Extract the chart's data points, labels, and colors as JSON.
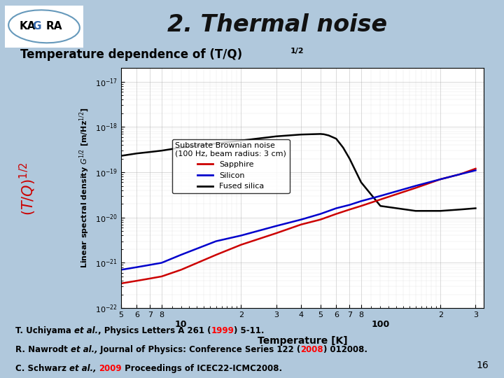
{
  "title": "2. Thermal noise",
  "slide_bg": "#b0c8dc",
  "title_color": "#1a1a1a",
  "left_label_color": "#cc0000",
  "ylabel": "Linear spectral density G$^{1/2}$ [m/Hz$^{1/2}$]",
  "xlabel": "Temperature [K]",
  "plot_bg": "#ffffff",
  "series": {
    "sapphire": {
      "color": "#cc0000",
      "label": "Sapphire",
      "x": [
        5,
        6,
        7,
        8,
        10,
        15,
        20,
        30,
        40,
        50,
        60,
        70,
        80,
        100,
        150,
        200,
        250,
        300
      ],
      "y": [
        3.5e-22,
        4e-22,
        4.5e-22,
        5e-22,
        7e-22,
        1.5e-21,
        2.5e-21,
        4.5e-21,
        7e-21,
        9e-21,
        1.2e-20,
        1.5e-20,
        1.8e-20,
        2.5e-20,
        4.5e-20,
        7e-20,
        9e-20,
        1.2e-19
      ]
    },
    "silicon": {
      "color": "#0000cc",
      "label": "Silicon",
      "x": [
        5,
        6,
        7,
        8,
        10,
        15,
        20,
        30,
        40,
        50,
        60,
        70,
        80,
        100,
        150,
        200,
        250,
        300
      ],
      "y": [
        7e-22,
        8e-22,
        9e-22,
        1e-21,
        1.5e-21,
        3e-21,
        4e-21,
        6.5e-21,
        9e-21,
        1.2e-20,
        1.6e-20,
        1.9e-20,
        2.3e-20,
        3e-20,
        5e-20,
        7e-20,
        9e-20,
        1.1e-19
      ]
    },
    "fused_silica": {
      "color": "#000000",
      "label": "Fused silica",
      "x": [
        5,
        6,
        7,
        8,
        10,
        20,
        30,
        40,
        50,
        52,
        55,
        60,
        65,
        70,
        80,
        100,
        150,
        200,
        250,
        300
      ],
      "y": [
        2.3e-19,
        2.6e-19,
        2.8e-19,
        3e-19,
        3.5e-19,
        5e-19,
        6.2e-19,
        6.8e-19,
        7e-19,
        6.9e-19,
        6.5e-19,
        5.5e-19,
        3.5e-19,
        2e-19,
        6e-20,
        1.8e-20,
        1.4e-20,
        1.4e-20,
        1.5e-20,
        1.6e-20
      ]
    }
  },
  "slide_number": "16"
}
